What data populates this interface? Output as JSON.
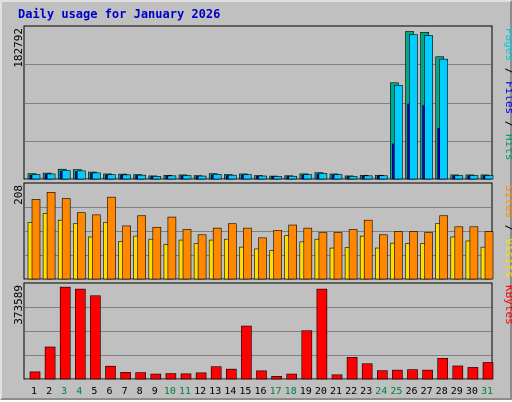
{
  "chart": {
    "title": "Daily usage for January 2026",
    "panels": {
      "hits": {
        "max_label": "182792",
        "legend": [
          {
            "text": "Pages",
            "color": "#00ccdd"
          },
          {
            "text": " / ",
            "color": "#000000"
          },
          {
            "text": "Files",
            "color": "#0000dd"
          },
          {
            "text": " / ",
            "color": "#000000"
          },
          {
            "text": "Hits",
            "color": "#009966"
          }
        ]
      },
      "visits": {
        "max_label": "208",
        "legend": [
          {
            "text": "Sites",
            "color": "#ff8800"
          },
          {
            "text": " / ",
            "color": "#000000"
          },
          {
            "text": "Visits",
            "color": "#ffdd00"
          }
        ]
      },
      "kbytes": {
        "max_label": "373589",
        "legend": [
          {
            "text": "KBytes",
            "color": "#ff0000"
          }
        ]
      }
    },
    "days": [
      "1",
      "2",
      "3",
      "4",
      "5",
      "6",
      "7",
      "8",
      "9",
      "10",
      "11",
      "12",
      "13",
      "14",
      "15",
      "16",
      "17",
      "18",
      "19",
      "20",
      "21",
      "22",
      "23",
      "24",
      "25",
      "26",
      "27",
      "28",
      "29",
      "30",
      "31"
    ],
    "weekend_days": [
      3,
      4,
      10,
      11,
      17,
      18,
      24,
      25,
      31
    ],
    "colors": {
      "weekday_label": "#000000",
      "weekend_label": "#008040",
      "hits": "#00aa88",
      "files": "#0000dd",
      "pages": "#00ccff",
      "visits": "#ffdd00",
      "sites": "#ff8800",
      "kbytes": "#ff0000",
      "plot_bg": "#c0c0c0",
      "grid": "#808080",
      "title": "#0000cc"
    }
  },
  "chart_data": {
    "type": "bar",
    "title": "Daily usage for January 2026",
    "categories": [
      "1",
      "2",
      "3",
      "4",
      "5",
      "6",
      "7",
      "8",
      "9",
      "10",
      "11",
      "12",
      "13",
      "14",
      "15",
      "16",
      "17",
      "18",
      "19",
      "20",
      "21",
      "22",
      "23",
      "24",
      "25",
      "26",
      "27",
      "28",
      "29",
      "30",
      "31"
    ],
    "panels": [
      {
        "name": "Pages / Files / Hits",
        "ymax": 182792,
        "series": [
          {
            "name": "Hits",
            "values": [
              6500,
              7200,
              12000,
              11500,
              8500,
              6200,
              6000,
              5500,
              3800,
              4500,
              5000,
              4200,
              6500,
              5500,
              6200,
              4300,
              3600,
              4000,
              6300,
              7800,
              6200,
              3800,
              4500,
              4600,
              118000,
              181000,
              180000,
              150000,
              5000,
              5000,
              5000
            ]
          },
          {
            "name": "Files",
            "values": [
              4800,
              5500,
              9500,
              9000,
              6800,
              4800,
              4600,
              4200,
              2800,
              3500,
              3800,
              3100,
              5000,
              4200,
              4800,
              3200,
              2700,
              3000,
              4800,
              6000,
              4800,
              2800,
              3400,
              3500,
              43000,
              92000,
              90000,
              62000,
              3800,
              3800,
              3800
            ]
          },
          {
            "name": "Pages",
            "values": [
              5500,
              6200,
              10500,
              10000,
              7500,
              5300,
              5100,
              4700,
              3200,
              3900,
              4300,
              3600,
              5600,
              4700,
              5400,
              3700,
              3100,
              3400,
              5400,
              6800,
              5400,
              3200,
              3900,
              4000,
              115000,
              177000,
              176000,
              147000,
              4300,
              4300,
              4300
            ]
          }
        ]
      },
      {
        "name": "Sites / Visits",
        "ymax": 208,
        "series": [
          {
            "name": "Visits",
            "values": [
              128,
              148,
              133,
              125,
              95,
              128,
              85,
              97,
              90,
              78,
              88,
              80,
              88,
              90,
              72,
              68,
              64,
              98,
              84,
              90,
              70,
              71,
              97,
              70,
              81,
              80,
              80,
              126,
              95,
              86,
              72
            ]
          },
          {
            "name": "Sites",
            "values": [
              180,
              196,
              182,
              150,
              145,
              185,
              120,
              143,
              117,
              140,
              112,
              100,
              115,
              125,
              115,
              93,
              110,
              122,
              115,
              105,
              105,
              112,
              133,
              100,
              107,
              107,
              105,
              143,
              118,
              118,
              107
            ]
          }
        ]
      },
      {
        "name": "KBytes",
        "ymax": 373589,
        "series": [
          {
            "name": "KBytes",
            "values": [
              29000,
              130000,
              373000,
              365000,
              338000,
              52000,
              27000,
              26000,
              20000,
              22000,
              21000,
              25000,
              50000,
              40000,
              215000,
              33000,
              11000,
              20000,
              196000,
              365000,
              17000,
              88000,
              62000,
              34000,
              36000,
              38000,
              36000,
              84000,
              53000,
              47000,
              67000
            ]
          }
        ]
      }
    ]
  }
}
